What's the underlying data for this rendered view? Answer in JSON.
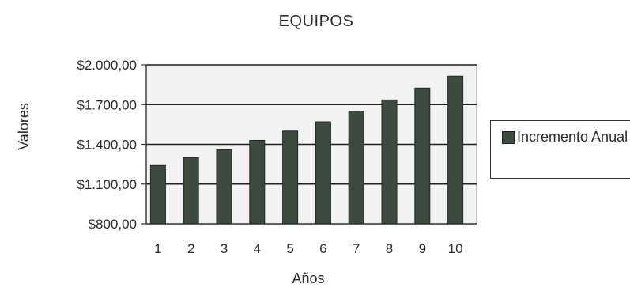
{
  "chart_data": {
    "type": "bar",
    "title": "EQUIPOS",
    "xlabel": "Años",
    "ylabel": "Valores",
    "categories": [
      "1",
      "2",
      "3",
      "4",
      "5",
      "6",
      "7",
      "8",
      "9",
      "10"
    ],
    "series": [
      {
        "name": "Incremento Anual",
        "values": [
          1240,
          1300,
          1360,
          1430,
          1500,
          1570,
          1650,
          1735,
          1825,
          1915
        ]
      }
    ],
    "ylim": [
      800,
      2000
    ],
    "yticks": [
      800,
      1100,
      1400,
      1700,
      2000
    ],
    "ytick_labels": [
      "$800,00",
      "$1.100,00",
      "$1.400,00",
      "$1.700,00",
      "$2.000,00"
    ],
    "grid": true,
    "legend_position": "right",
    "bar_color": "#3c4a3f",
    "plot_background": "#f2f2f2"
  }
}
